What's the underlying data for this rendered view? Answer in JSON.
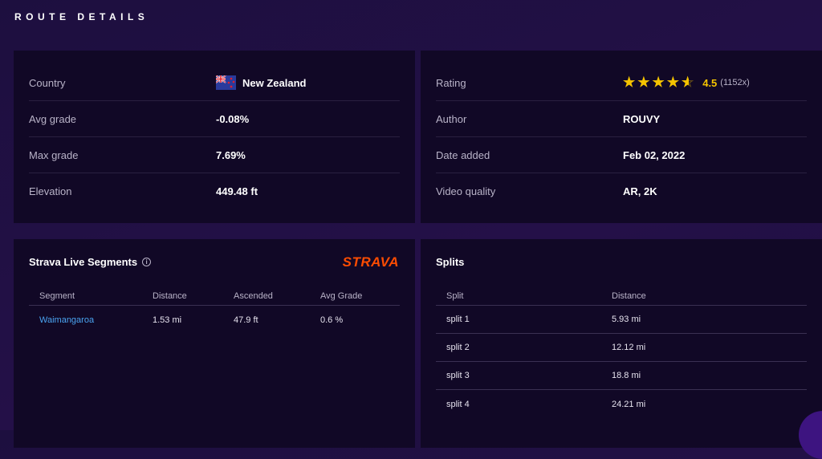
{
  "section_title": "ROUTE DETAILS",
  "details_left": [
    {
      "label": "Country",
      "value": "New Zealand",
      "icon": "new-zealand-flag"
    },
    {
      "label": "Avg grade",
      "value": "-0.08%"
    },
    {
      "label": "Max grade",
      "value": "7.69%"
    },
    {
      "label": "Elevation",
      "value": "449.48 ft"
    }
  ],
  "details_right": {
    "rating": {
      "label": "Rating",
      "stars": 4.5,
      "value": "4.5",
      "count": "(1152x)",
      "color": "#f5c400"
    },
    "rows": [
      {
        "label": "Author",
        "value": "ROUVY"
      },
      {
        "label": "Date added",
        "value": "Feb 02, 2022"
      },
      {
        "label": "Video quality",
        "value": "AR, 2K"
      }
    ]
  },
  "strava": {
    "title": "Strava Live Segments",
    "logo": "STRAVA",
    "brand_color": "#fc4c02",
    "headers": [
      "Segment",
      "Distance",
      "Ascended",
      "Avg Grade"
    ],
    "rows": [
      [
        "Waimangaroa",
        "1.53 mi",
        "47.9 ft",
        "0.6 %"
      ]
    ]
  },
  "splits": {
    "title": "Splits",
    "headers": [
      "Split",
      "Distance"
    ],
    "rows": [
      [
        "split 1",
        "5.93 mi"
      ],
      [
        "split 2",
        "12.12 mi"
      ],
      [
        "split 3",
        "18.8 mi"
      ],
      [
        "split 4",
        "24.21 mi"
      ]
    ]
  }
}
